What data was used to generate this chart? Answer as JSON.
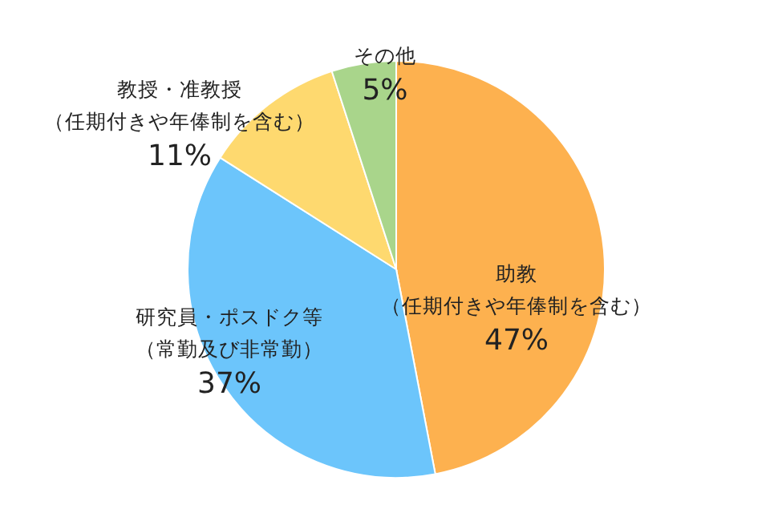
{
  "chart_data": {
    "type": "pie",
    "categories": [
      "助教（任期付きや年俸制を含む）",
      "研究員・ポスドク等（常勤及び非常勤）",
      "教授・准教授（任期付きや年俸制を含む）",
      "その他"
    ],
    "values": [
      47,
      37,
      11,
      5
    ],
    "value_labels": [
      "47%",
      "37%",
      "11%",
      "5%"
    ],
    "colors": [
      "#fdb14f",
      "#6cc5fb",
      "#fed96f",
      "#a9d58b"
    ]
  }
}
